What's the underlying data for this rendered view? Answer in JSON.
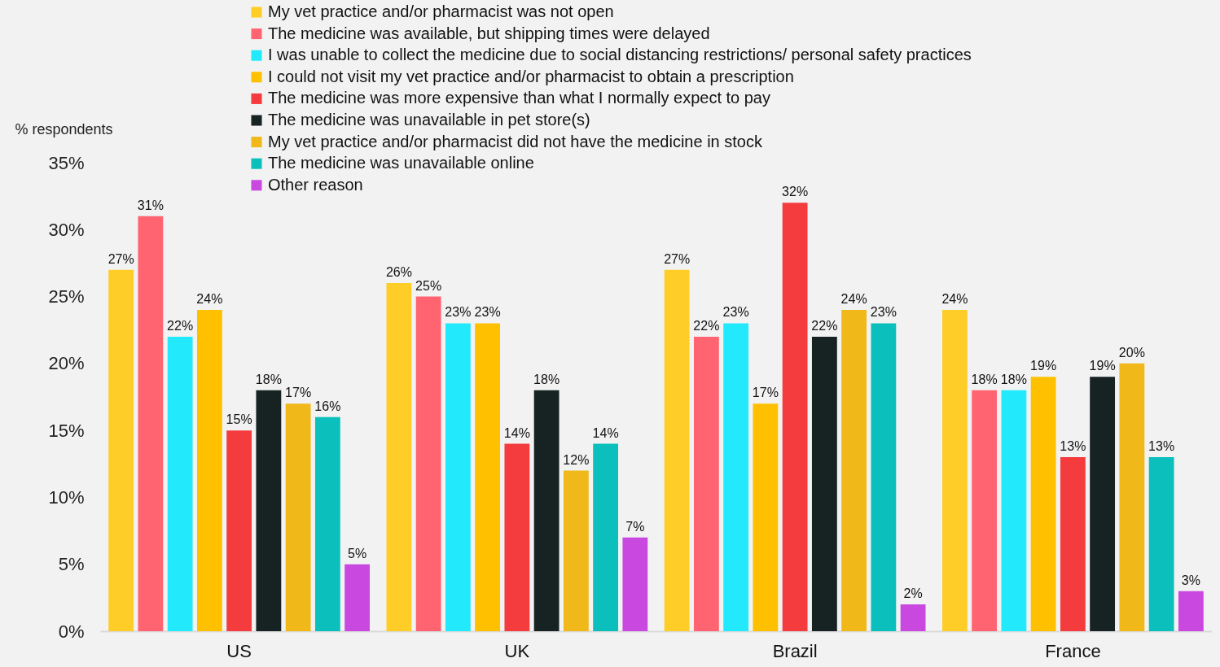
{
  "chart_data": {
    "type": "bar",
    "ylabel": "% respondents",
    "categories": [
      "US",
      "UK",
      "Brazil",
      "France"
    ],
    "series": [
      {
        "name": "My vet practice and/or pharmacist was not open",
        "color": "#ffcd27",
        "values": [
          27,
          26,
          27,
          24
        ],
        "value_labels": [
          "27%",
          "26%",
          "27%",
          "24%"
        ]
      },
      {
        "name": "The medicine was available, but shipping times were delayed",
        "color": "#ff6470",
        "values": [
          31,
          25,
          22,
          18
        ],
        "value_labels": [
          "31%",
          "25%",
          "22%",
          "18%"
        ]
      },
      {
        "name": "I was unable to collect the medicine due to social distancing restrictions/ personal safety practices",
        "color": "#22e9fc",
        "values": [
          22,
          23,
          23,
          18
        ],
        "value_labels": [
          "22%",
          "23%",
          "23%",
          "18%"
        ]
      },
      {
        "name": "I could not visit my vet practice and/or pharmacist to obtain a prescription",
        "color": "#ffc000",
        "values": [
          24,
          23,
          17,
          19
        ],
        "value_labels": [
          "24%",
          "23%",
          "17%",
          "19%"
        ]
      },
      {
        "name": "The medicine was more expensive than what I normally expect to pay",
        "color": "#f43b3e",
        "values": [
          15,
          14,
          32,
          13
        ],
        "value_labels": [
          "15%",
          "14%",
          "32%",
          "13%"
        ]
      },
      {
        "name": "The medicine was unavailable in pet store(s)",
        "color": "#172222",
        "values": [
          18,
          18,
          22,
          19
        ],
        "value_labels": [
          "18%",
          "18%",
          "22%",
          "19%"
        ]
      },
      {
        "name": "My vet practice and/or pharmacist did not have the medicine in stock",
        "color": "#f0b818",
        "values": [
          17,
          12,
          24,
          20
        ],
        "value_labels": [
          "17%",
          "12%",
          "24%",
          "20%"
        ]
      },
      {
        "name": "The medicine was unavailable online",
        "color": "#0bc0bc",
        "values": [
          16,
          14,
          23,
          13
        ],
        "value_labels": [
          "16%",
          "14%",
          "23%",
          "13%"
        ]
      },
      {
        "name": "Other reason",
        "color": "#c848e0",
        "values": [
          5,
          7,
          2,
          3
        ],
        "value_labels": [
          "5%",
          "7%",
          "2%",
          "3%"
        ]
      }
    ],
    "ylim": [
      0,
      35
    ],
    "yticks": [
      {
        "value": 0,
        "label": "0%"
      },
      {
        "value": 5,
        "label": "5%"
      },
      {
        "value": 10,
        "label": "10%"
      },
      {
        "value": 15,
        "label": "15%"
      },
      {
        "value": 20,
        "label": "20%"
      },
      {
        "value": 25,
        "label": "25%"
      },
      {
        "value": 30,
        "label": "30%"
      },
      {
        "value": 35,
        "label": "35%"
      }
    ],
    "legend": "top"
  }
}
